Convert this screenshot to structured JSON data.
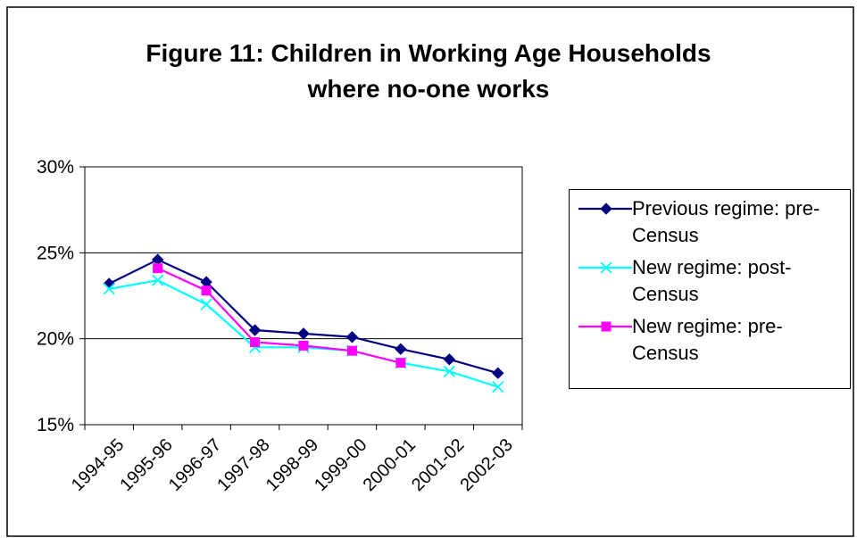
{
  "chart_data": {
    "type": "line",
    "title": "Figure 11: Children in Working Age Households where no-one works",
    "categories": [
      "1994-95",
      "1995-96",
      "1996-97",
      "1997-98",
      "1998-99",
      "1999-00",
      "2000-01",
      "2001-02",
      "2002-03"
    ],
    "series": [
      {
        "name": "Previous regime: pre-Census",
        "color": "#000080",
        "marker": "diamond",
        "values": [
          23.2,
          24.6,
          23.3,
          20.5,
          20.3,
          20.1,
          19.4,
          18.8,
          18.0
        ]
      },
      {
        "name": "New regime: post-Census",
        "color": "#00FFFF",
        "marker": "x",
        "values": [
          22.9,
          23.4,
          22.0,
          19.5,
          19.5,
          19.3,
          18.6,
          18.1,
          17.2
        ]
      },
      {
        "name": "New regime: pre-Census",
        "color": "#FF00FF",
        "marker": "square",
        "values": [
          null,
          24.1,
          22.8,
          19.8,
          19.6,
          19.3,
          18.6,
          null,
          null
        ]
      }
    ],
    "ylim": [
      15,
      30
    ],
    "yticks": [
      {
        "value": 15,
        "label": "15%"
      },
      {
        "value": 20,
        "label": "20%"
      },
      {
        "value": 25,
        "label": "25%"
      },
      {
        "value": 30,
        "label": "30%"
      }
    ],
    "grid": true,
    "legend": "right"
  }
}
